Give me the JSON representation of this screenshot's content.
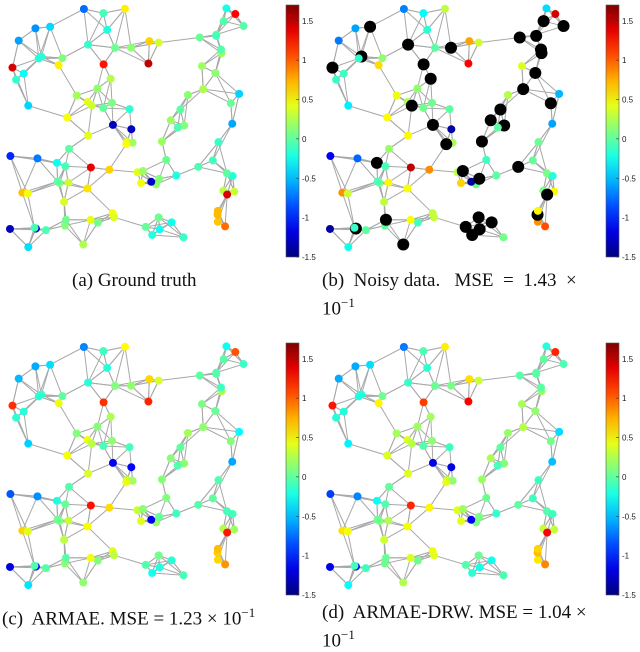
{
  "colorbar": {
    "ticks": [
      "1.5",
      "1",
      "0.5",
      "0",
      "-0.5",
      "-1",
      "-1.5"
    ],
    "tick_values": [
      1.5,
      1,
      0.5,
      0,
      -0.5,
      -1,
      -1.5
    ],
    "range": [
      -1.5,
      1.7
    ],
    "colormap": "jet"
  },
  "edge_color": "#a8a8a8",
  "missing_node_color": "#000000",
  "panels": [
    {
      "id": "a",
      "caption": "(a)  Ground truth"
    },
    {
      "id": "b",
      "caption_line1": "(b)  Noisy data.   MSE  =  1.43  ×",
      "caption_line2_base": "10",
      "caption_line2_exp": "−1"
    },
    {
      "id": "c",
      "caption_base": "(c)  ARMAE. MSE = 1.23 × 10",
      "caption_exp": "−1"
    },
    {
      "id": "d",
      "caption_line1_base": "(d)  ARMAE-DRW. MSE = 1.04 ×",
      "caption_line2_base": "10",
      "caption_line2_exp": "−1"
    }
  ]
}
